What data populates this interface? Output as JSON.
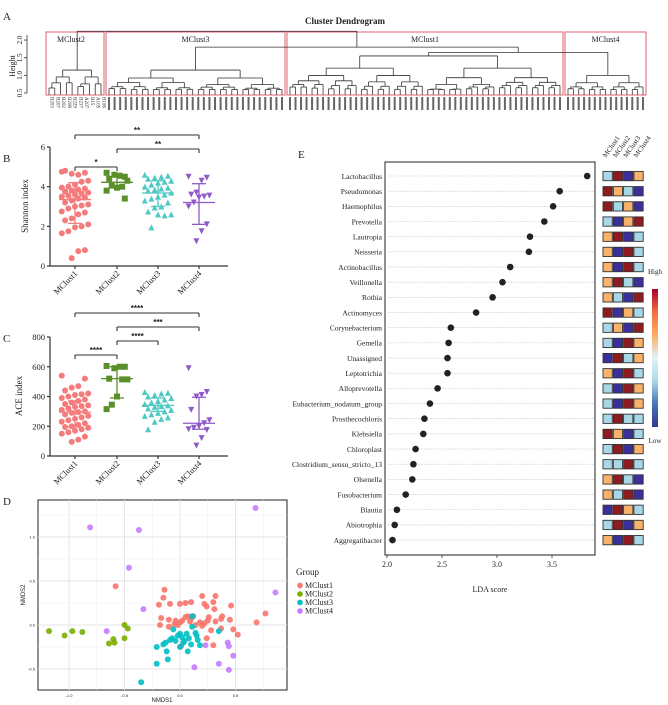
{
  "panel_letters": {
    "a": "A",
    "b": "B",
    "c": "C",
    "d": "D",
    "e": "E"
  },
  "chart_data": [
    {
      "id": "A",
      "type": "dendrogram",
      "title": "Cluster Dendrogram",
      "ylabel": "Height",
      "yticks": [
        "0.5",
        "1.0",
        "1.5",
        "2.0"
      ],
      "ylim": [
        0.5,
        2.3
      ],
      "clusters": [
        {
          "name": "MClust2",
          "leaves": 10,
          "height": 1.15
        },
        {
          "name": "MClust3",
          "leaves": 32,
          "height": 1.15
        },
        {
          "name": "MClust1",
          "leaves": 50,
          "height": 1.55
        },
        {
          "name": "MClust4",
          "leaves": 15,
          "height": 1.0
        }
      ],
      "merges": {
        "MClust1+MClust4": 1.65,
        "MClust3+(MClust1+MClust4)": 1.8,
        "root": 2.25
      },
      "leaf_labels_visible": [
        "B203",
        "B207",
        "B202",
        "B208",
        "B229",
        "B237",
        "A207",
        "B15",
        "A105",
        "B106"
      ],
      "box_color": "#e06070"
    },
    {
      "id": "B",
      "type": "scatter",
      "ylabel": "Shannon index",
      "ylim": [
        0,
        6
      ],
      "yticks": [
        "0",
        "2",
        "4",
        "6"
      ],
      "categories": [
        "MClust1",
        "MClust2",
        "MClust3",
        "MClust4"
      ],
      "colors": [
        "#f47c7c",
        "#5a8f29",
        "#4ec9c4",
        "#8e5bc8"
      ],
      "series": [
        {
          "name": "MClust1",
          "mean": 3.35,
          "sd": [
            2.15,
            4.2
          ],
          "values": [
            4.75,
            4.7,
            4.6,
            4.65,
            4.8,
            4.3,
            4.25,
            4.1,
            4.0,
            3.95,
            3.9,
            3.85,
            3.8,
            3.75,
            3.7,
            3.65,
            3.6,
            3.55,
            3.5,
            3.45,
            3.4,
            3.3,
            3.2,
            3.1,
            3.05,
            3.0,
            2.9,
            2.75,
            2.7,
            2.6,
            2.4,
            2.3,
            2.1,
            2.0,
            1.95,
            1.75,
            1.65,
            0.8,
            0.75,
            0.4
          ]
        },
        {
          "name": "MClust2",
          "mean": 4.22,
          "sd": [
            3.95,
            4.5
          ],
          "values": [
            4.7,
            4.5,
            4.55,
            4.6,
            4.4,
            4.3,
            4.0,
            3.95,
            4.05,
            3.8,
            3.4
          ]
        },
        {
          "name": "MClust3",
          "mean": 3.68,
          "sd": [
            3.0,
            4.3
          ],
          "values": [
            4.6,
            4.55,
            4.5,
            4.45,
            4.4,
            4.3,
            4.25,
            4.2,
            4.1,
            4.0,
            3.95,
            3.9,
            3.85,
            3.8,
            3.7,
            3.6,
            3.5,
            3.4,
            3.3,
            3.2,
            3.0,
            2.95,
            2.75,
            2.6,
            2.55,
            2.6,
            1.95
          ]
        },
        {
          "name": "MClust4",
          "mean": 3.2,
          "sd": [
            2.1,
            4.15
          ],
          "values": [
            4.5,
            4.45,
            4.3,
            3.7,
            3.6,
            3.55,
            3.5,
            3.45,
            3.2,
            3.0,
            2.1,
            1.75,
            1.25
          ]
        }
      ],
      "significance": [
        {
          "pair": [
            0,
            1
          ],
          "label": "*",
          "level": 0
        },
        {
          "pair": [
            1,
            3
          ],
          "label": "**",
          "level": 1
        },
        {
          "pair": [
            0,
            3
          ],
          "label": "**",
          "level": 2
        }
      ]
    },
    {
      "id": "C",
      "type": "scatter",
      "ylabel": "ACE index",
      "ylim": [
        0,
        800
      ],
      "yticks": [
        "0",
        "200",
        "400",
        "600",
        "800"
      ],
      "categories": [
        "MClust1",
        "MClust2",
        "MClust3",
        "MClust4"
      ],
      "colors": [
        "#f47c7c",
        "#5a8f29",
        "#4ec9c4",
        "#8e5bc8"
      ],
      "series": [
        {
          "name": "MClust1",
          "mean": 295,
          "sd": [
            195,
            370
          ],
          "values": [
            540,
            520,
            470,
            460,
            440,
            420,
            415,
            410,
            400,
            390,
            380,
            370,
            360,
            350,
            340,
            335,
            330,
            320,
            310,
            300,
            295,
            290,
            280,
            270,
            260,
            250,
            240,
            230,
            220,
            210,
            200,
            195,
            190,
            180,
            170,
            160,
            150,
            130,
            110,
            95
          ]
        },
        {
          "name": "MClust2",
          "mean": 520,
          "sd": [
            390,
            600
          ],
          "values": [
            605,
            600,
            600,
            590,
            520,
            515,
            515,
            400,
            345,
            315
          ]
        },
        {
          "name": "MClust3",
          "mean": 340,
          "sd": [
            300,
            390
          ],
          "values": [
            430,
            425,
            420,
            410,
            400,
            390,
            380,
            370,
            360,
            350,
            340,
            335,
            330,
            320,
            310,
            300,
            290,
            280,
            270,
            260,
            250,
            230,
            180
          ]
        },
        {
          "name": "MClust4",
          "mean": 220,
          "sd": [
            180,
            395
          ],
          "values": [
            590,
            430,
            410,
            400,
            310,
            240,
            220,
            200,
            190,
            180,
            175,
            120,
            70
          ]
        }
      ],
      "significance": [
        {
          "pair": [
            0,
            1
          ],
          "label": "****",
          "level": 0
        },
        {
          "pair": [
            1,
            2
          ],
          "label": "****",
          "level": 1
        },
        {
          "pair": [
            1,
            3
          ],
          "label": "***",
          "level": 2
        },
        {
          "pair": [
            0,
            3
          ],
          "label": "****",
          "level": 3
        }
      ]
    },
    {
      "id": "D",
      "type": "scatter",
      "xlabel": "NMDS1",
      "ylabel": "NMDS2",
      "xlim": [
        -1.3,
        1.0
      ],
      "ylim": [
        -0.75,
        1.4
      ],
      "xticks": [
        "-1.0",
        "-0.5",
        "0.0",
        "0.5"
      ],
      "yticks": [
        "-0.5",
        "0.0",
        "0.5",
        "1.0"
      ],
      "grid": true,
      "legend": {
        "title": "Group",
        "position": "right",
        "items": [
          "MClust1",
          "MClust2",
          "MClust3",
          "MClust4"
        ]
      },
      "colors": [
        "#f8766d",
        "#7cae00",
        "#00bfc4",
        "#c77cff"
      ],
      "series": [
        {
          "name": "MClust1",
          "points": [
            [
              -0.58,
              0.44
            ],
            [
              -0.14,
              0.4
            ],
            [
              -0.15,
              0.31
            ],
            [
              -0.19,
              0.23
            ],
            [
              -0.09,
              0.24
            ],
            [
              0.0,
              0.24
            ],
            [
              0.05,
              0.25
            ],
            [
              0.1,
              0.26
            ],
            [
              0.2,
              0.33
            ],
            [
              0.22,
              0.24
            ],
            [
              0.24,
              0.21
            ],
            [
              0.3,
              0.26
            ],
            [
              0.32,
              0.33
            ],
            [
              0.31,
              0.18
            ],
            [
              0.46,
              0.22
            ],
            [
              -0.17,
              0.08
            ],
            [
              -0.18,
              0.0
            ],
            [
              -0.1,
              0.06
            ],
            [
              -0.05,
              0.01
            ],
            [
              -0.04,
              0.05
            ],
            [
              0.0,
              0.03
            ],
            [
              0.02,
              0.05
            ],
            [
              0.05,
              0.09
            ],
            [
              0.07,
              0.1
            ],
            [
              0.09,
              0.04
            ],
            [
              0.1,
              0.07
            ],
            [
              0.12,
              0.1
            ],
            [
              0.18,
              0.03
            ],
            [
              0.2,
              -0.01
            ],
            [
              0.22,
              0.02
            ],
            [
              0.25,
              0.05
            ],
            [
              0.26,
              0.09
            ],
            [
              0.28,
              -0.06
            ],
            [
              0.32,
              0.04
            ],
            [
              0.37,
              0.07
            ],
            [
              0.38,
              0.1
            ],
            [
              0.37,
              -0.04
            ],
            [
              0.45,
              0.06
            ],
            [
              0.48,
              -0.05
            ],
            [
              0.52,
              -0.11
            ],
            [
              0.69,
              0.03
            ],
            [
              0.77,
              0.13
            ],
            [
              -0.1,
              -0.02
            ],
            [
              0.14,
              0.0
            ],
            [
              0.24,
              -0.15
            ],
            [
              0.3,
              -0.23
            ],
            [
              0.01,
              -0.24
            ],
            [
              -0.02,
              0.0
            ]
          ]
        },
        {
          "name": "MClust2",
          "points": [
            [
              -1.18,
              -0.07
            ],
            [
              -1.04,
              -0.12
            ],
            [
              -0.97,
              -0.07
            ],
            [
              -0.88,
              -0.08
            ],
            [
              -0.64,
              -0.21
            ],
            [
              -0.6,
              -0.16
            ],
            [
              -0.59,
              -0.2
            ],
            [
              -0.5,
              0.0
            ],
            [
              -0.47,
              -0.04
            ],
            [
              -0.5,
              -0.15
            ]
          ]
        },
        {
          "name": "MClust3",
          "points": [
            [
              0.11,
              0.1
            ],
            [
              -0.35,
              -0.65
            ],
            [
              -0.21,
              -0.25
            ],
            [
              -0.21,
              -0.44
            ],
            [
              -0.12,
              -0.3
            ],
            [
              -0.11,
              -0.39
            ],
            [
              -0.06,
              -0.05
            ],
            [
              -0.13,
              -0.2
            ],
            [
              -0.09,
              -0.17
            ],
            [
              -0.07,
              -0.15
            ],
            [
              -0.04,
              -0.18
            ],
            [
              -0.02,
              -0.12
            ],
            [
              0.0,
              -0.1
            ],
            [
              0.02,
              -0.14
            ],
            [
              0.04,
              -0.18
            ],
            [
              0.06,
              -0.1
            ],
            [
              0.08,
              -0.15
            ],
            [
              0.1,
              -0.22
            ],
            [
              0.11,
              -0.02
            ],
            [
              0.14,
              -0.09
            ],
            [
              0.16,
              -0.17
            ],
            [
              0.18,
              -0.23
            ],
            [
              0.03,
              -0.2
            ],
            [
              0.0,
              -0.25
            ],
            [
              0.07,
              -0.3
            ],
            [
              0.35,
              -0.07
            ],
            [
              -0.15,
              -0.22
            ],
            [
              0.15,
              -0.12
            ]
          ]
        },
        {
          "name": "MClust4",
          "points": [
            [
              -0.81,
              1.11
            ],
            [
              -0.37,
              1.08
            ],
            [
              0.68,
              1.33
            ],
            [
              -0.46,
              0.65
            ],
            [
              -0.33,
              0.18
            ],
            [
              -0.66,
              -0.07
            ],
            [
              0.86,
              0.37
            ],
            [
              0.23,
              -0.23
            ],
            [
              0.43,
              -0.2
            ],
            [
              0.44,
              -0.24
            ],
            [
              0.48,
              -0.35
            ],
            [
              0.35,
              -0.44
            ],
            [
              0.13,
              -0.48
            ],
            [
              0.44,
              -0.51
            ]
          ]
        }
      ]
    },
    {
      "id": "E",
      "type": "dot",
      "xlabel": "LDA score",
      "xlim": [
        1.98,
        3.9
      ],
      "xticks": [
        "2.0",
        "2.5",
        "3.0",
        "3.5"
      ],
      "heatmap_columns": [
        "MClust1",
        "MClust2",
        "MClust3",
        "MClust4"
      ],
      "colorbar": {
        "high": "High",
        "low": "Low",
        "colors": [
          "#a50026",
          "#f46d43",
          "#fdae61",
          "#e0f3f8",
          "#abd9e9",
          "#4575b4",
          "#313695"
        ]
      },
      "heat_colors": {
        "n": "#3b2f9a",
        "l": "#a8d8e8",
        "o": "#f9b26a",
        "r": "#8e1b1f"
      },
      "rows": [
        {
          "taxon": "Lactobacillus",
          "lda": 3.82,
          "heat": "lrno"
        },
        {
          "taxon": "Pseudomonas",
          "lda": 3.57,
          "heat": "roln"
        },
        {
          "taxon": "Haemophilus",
          "lda": 3.51,
          "heat": "rlon"
        },
        {
          "taxon": "Prevotella",
          "lda": 3.43,
          "heat": "lnor"
        },
        {
          "taxon": "Lautropia",
          "lda": 3.3,
          "heat": "ornl"
        },
        {
          "taxon": "Neisseria",
          "lda": 3.29,
          "heat": "onrl"
        },
        {
          "taxon": "Actinobacillus",
          "lda": 3.12,
          "heat": "onrl"
        },
        {
          "taxon": "Veillonella",
          "lda": 3.05,
          "heat": "orln"
        },
        {
          "taxon": "Rothia",
          "lda": 2.96,
          "heat": "olnr"
        },
        {
          "taxon": "Actinomyces",
          "lda": 2.81,
          "heat": "rnol"
        },
        {
          "taxon": "Corynebacterium",
          "lda": 2.58,
          "heat": "lonr"
        },
        {
          "taxon": "Gemella",
          "lda": 2.56,
          "heat": "lnro"
        },
        {
          "taxon": "Unassigned",
          "lda": 2.55,
          "heat": "nrlo"
        },
        {
          "taxon": "Leptotrichia",
          "lda": 2.55,
          "heat": "onrl"
        },
        {
          "taxon": "Alloprevotella",
          "lda": 2.46,
          "heat": "lnro"
        },
        {
          "taxon": "Eubacterium_nodatum_group",
          "lda": 2.39,
          "heat": "lnro"
        },
        {
          "taxon": "Prosthecochloris",
          "lda": 2.34,
          "heat": "lrll"
        },
        {
          "taxon": "Klebsiella",
          "lda": 2.33,
          "heat": "ronl"
        },
        {
          "taxon": "Chloroplast",
          "lda": 2.26,
          "heat": "lrno"
        },
        {
          "taxon": "Clostridium_sensu_stricto_13",
          "lda": 2.24,
          "heat": "llrl"
        },
        {
          "taxon": "Olsenella",
          "lda": 2.23,
          "heat": "orln"
        },
        {
          "taxon": "Fusobacterium",
          "lda": 2.17,
          "heat": "olrn"
        },
        {
          "taxon": "Blautia",
          "lda": 2.09,
          "heat": "nrol"
        },
        {
          "taxon": "Abiotrophia",
          "lda": 2.07,
          "heat": "lrno"
        },
        {
          "taxon": "Aggregatibacter",
          "lda": 2.05,
          "heat": "onrl"
        }
      ]
    }
  ]
}
